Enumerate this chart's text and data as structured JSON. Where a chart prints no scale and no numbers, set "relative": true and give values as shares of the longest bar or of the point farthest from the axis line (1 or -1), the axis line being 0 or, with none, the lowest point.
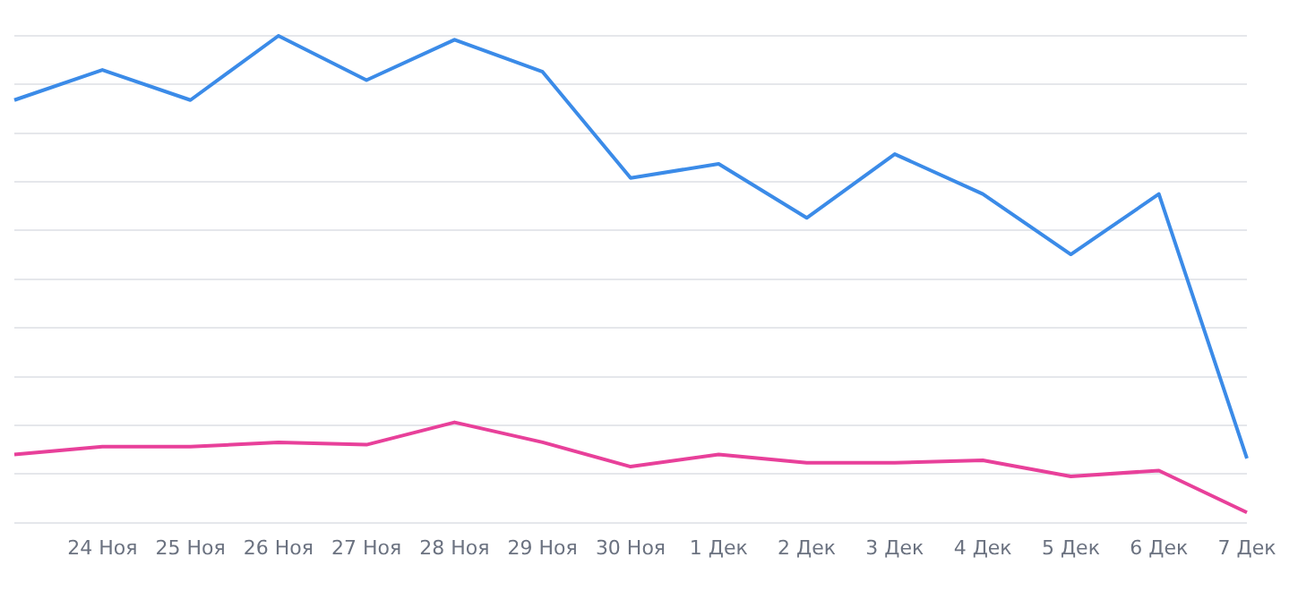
{
  "chart_data": {
    "type": "line",
    "relative": true,
    "grid": "y",
    "marker": "none",
    "line_style": "solid",
    "categories": [
      null,
      "24 Ноя",
      "25 Ноя",
      "26 Ноя",
      "27 Ноя",
      "28 Ноя",
      "29 Ноя",
      "30 Ноя",
      "1 Дек",
      "2 Дек",
      "3 Дек",
      "4 Дек",
      "5 Дек",
      "6 Дек",
      "7 Дек"
    ],
    "series": [
      {
        "color": "#3b8be8",
        "values": [
          0.868,
          0.93,
          0.868,
          1,
          0.909,
          0.992,
          0.926,
          0.708,
          0.737,
          0.626,
          0.757,
          0.675,
          0.551,
          0.675,
          0.132
        ]
      },
      {
        "color": "#e8409a",
        "values": [
          0.14,
          0.156,
          0.156,
          0.165,
          0.16,
          0.206,
          0.165,
          0.115,
          0.14,
          0.123,
          0.123,
          0.128,
          0.095,
          0.107,
          0.021
        ]
      }
    ]
  }
}
